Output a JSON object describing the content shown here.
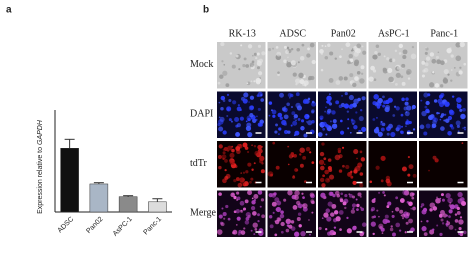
{
  "panel_labels": [
    "a",
    "b"
  ],
  "chart_data": {
    "type": "bar",
    "ylabel_parts": [
      "Expression relative to",
      "GAPDH"
    ],
    "categories": [
      "ADSC",
      "Pan02",
      "AsPC-1",
      "Panc-1"
    ],
    "values": [
      25,
      11,
      6,
      4
    ],
    "errors": [
      3.5,
      0.5,
      0.4,
      1.2
    ],
    "colors": [
      "#111111",
      "#a9b6c6",
      "#8a8a8a",
      "#dcdcdc"
    ],
    "ylim": [
      0,
      40
    ]
  },
  "panel_b": {
    "columns": [
      "RK-13",
      "ADSC",
      "Pan02",
      "AsPC-1",
      "Panc-1"
    ],
    "rows": [
      "Mock",
      "DAPI",
      "tdTr",
      "Merge"
    ]
  }
}
